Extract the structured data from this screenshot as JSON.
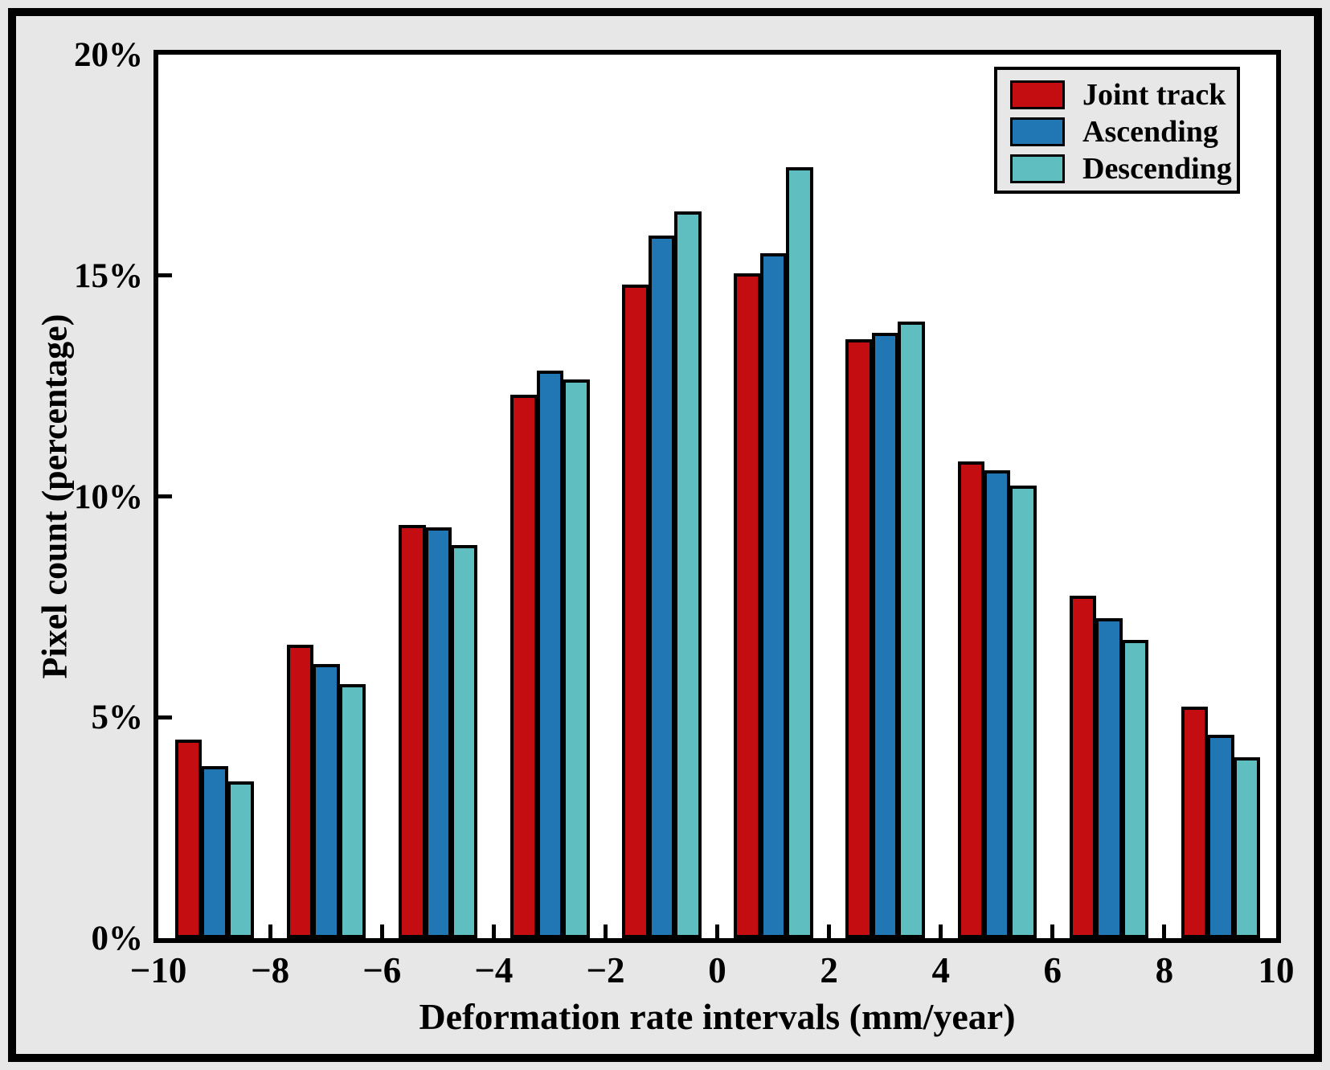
{
  "colors": {
    "figure_background": "#e7e7e7",
    "plot_background": "#ffffff",
    "axis": "#000000",
    "joint_track": "#c30d10",
    "ascending": "#2176b4",
    "descending": "#5fbfc0"
  },
  "chart_data": {
    "type": "bar",
    "title": "",
    "xlabel": "Deformation rate intervals (mm/year)",
    "ylabel": "Pixel count (percentage)",
    "xlim": [
      -10,
      10
    ],
    "ylim": [
      0,
      20
    ],
    "grid": false,
    "legend_position": "top-right",
    "bin_width": 2,
    "x_tick_values": [
      -10,
      -8,
      -6,
      -4,
      -2,
      0,
      2,
      4,
      6,
      8,
      10
    ],
    "x_tick_labels": [
      "−10",
      "−8",
      "−6",
      "−4",
      "−2",
      "0",
      "2",
      "4",
      "6",
      "8",
      "10"
    ],
    "y_tick_values": [
      0,
      5,
      10,
      15,
      20
    ],
    "y_tick_labels": [
      "0%",
      "5%",
      "10%",
      "15%",
      "20%"
    ],
    "categories": [
      "-10 to -8",
      "-8 to -6",
      "-6 to -4",
      "-4 to -2",
      "-2 to 0",
      "0 to 2",
      "2 to 4",
      "4 to 6",
      "6 to 8",
      "8 to 10"
    ],
    "series": [
      {
        "name": "Joint track",
        "color": "#c30d10",
        "values": [
          4.5,
          6.65,
          9.35,
          12.3,
          14.8,
          15.05,
          13.55,
          10.8,
          7.75,
          5.25
        ]
      },
      {
        "name": "Ascending",
        "color": "#2176b4",
        "values": [
          3.9,
          6.2,
          9.3,
          12.85,
          15.9,
          15.5,
          13.7,
          10.6,
          7.25,
          4.6
        ]
      },
      {
        "name": "Descending",
        "color": "#5fbfc0",
        "values": [
          3.55,
          5.75,
          8.9,
          12.65,
          16.45,
          17.45,
          13.95,
          10.25,
          6.75,
          4.1
        ]
      }
    ]
  }
}
